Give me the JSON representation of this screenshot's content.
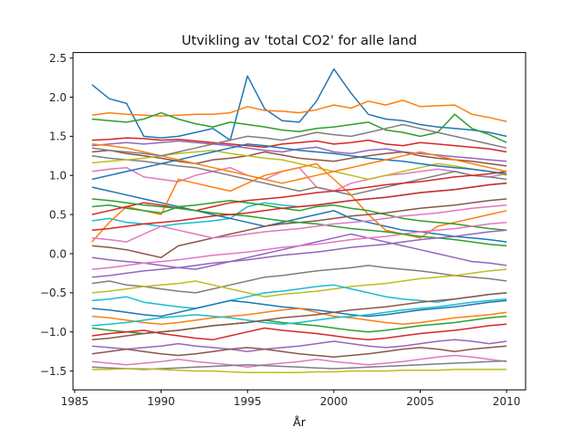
{
  "chart_data": {
    "type": "line",
    "title": "Utvikling av 'total CO2' for alle land",
    "xlabel": "År",
    "ylabel": "",
    "xlim": [
      1984.9,
      2011.1
    ],
    "ylim": [
      -1.74,
      2.57
    ],
    "xticks": [
      1985,
      1990,
      1995,
      2000,
      2005,
      2010
    ],
    "yticks": [
      -1.5,
      -1.0,
      -0.5,
      0.0,
      0.5,
      1.0,
      1.5,
      2.0,
      2.5
    ],
    "ytick_labels": [
      "−1.5",
      "−1.0",
      "−0.5",
      "0.0",
      "0.5",
      "1.0",
      "1.5",
      "2.0",
      "2.5"
    ],
    "x": [
      1986,
      1987,
      1988,
      1989,
      1990,
      1991,
      1992,
      1993,
      1994,
      1995,
      1996,
      1997,
      1998,
      1999,
      2000,
      2001,
      2002,
      2003,
      2004,
      2005,
      2006,
      2007,
      2008,
      2009,
      2010
    ],
    "palette": [
      "#1f77b4",
      "#ff7f0e",
      "#2ca02c",
      "#d62728",
      "#9467bd",
      "#8c564b",
      "#e377c2",
      "#7f7f7f",
      "#bcbd22",
      "#17becf"
    ],
    "series": [
      {
        "values": [
          2.16,
          1.98,
          1.92,
          1.5,
          1.48,
          1.5,
          1.55,
          1.6,
          1.45,
          2.27,
          1.85,
          1.7,
          1.68,
          1.95,
          2.36,
          2.05,
          1.78,
          1.72,
          1.7,
          1.65,
          1.62,
          1.6,
          1.58,
          1.55,
          1.5
        ]
      },
      {
        "values": [
          1.77,
          1.8,
          1.78,
          1.77,
          1.76,
          1.77,
          1.78,
          1.78,
          1.8,
          1.88,
          1.83,
          1.82,
          1.8,
          1.84,
          1.9,
          1.86,
          1.95,
          1.9,
          1.96,
          1.88,
          1.89,
          1.9,
          1.78,
          1.74,
          1.69
        ]
      },
      {
        "values": [
          1.72,
          1.7,
          1.68,
          1.72,
          1.8,
          1.72,
          1.66,
          1.62,
          1.68,
          1.65,
          1.62,
          1.58,
          1.56,
          1.6,
          1.62,
          1.65,
          1.68,
          1.58,
          1.55,
          1.5,
          1.55,
          1.78,
          1.6,
          1.52,
          1.42
        ]
      },
      {
        "values": [
          1.45,
          1.46,
          1.48,
          1.47,
          1.45,
          1.46,
          1.44,
          1.42,
          1.4,
          1.38,
          1.36,
          1.4,
          1.42,
          1.44,
          1.4,
          1.42,
          1.45,
          1.4,
          1.38,
          1.42,
          1.4,
          1.38,
          1.36,
          1.34,
          1.3
        ]
      },
      {
        "values": [
          1.38,
          1.4,
          1.42,
          1.4,
          1.42,
          1.44,
          1.42,
          1.4,
          1.38,
          1.35,
          1.32,
          1.3,
          1.34,
          1.36,
          1.3,
          1.28,
          1.32,
          1.34,
          1.3,
          1.28,
          1.26,
          1.24,
          1.22,
          1.2,
          1.18
        ]
      },
      {
        "values": [
          1.3,
          1.32,
          1.28,
          1.25,
          1.22,
          1.18,
          1.15,
          1.2,
          1.22,
          1.25,
          1.3,
          1.26,
          1.22,
          1.2,
          1.18,
          1.22,
          1.25,
          1.28,
          1.3,
          1.25,
          1.22,
          1.2,
          1.18,
          1.15,
          1.12
        ]
      },
      {
        "values": [
          1.05,
          1.08,
          1.1,
          0.98,
          0.95,
          0.92,
          1.0,
          1.05,
          1.1,
          1.0,
          0.95,
          1.05,
          1.1,
          0.85,
          0.8,
          0.9,
          0.95,
          1.0,
          1.02,
          1.05,
          1.08,
          1.05,
          1.0,
          0.98,
          1.02
        ]
      },
      {
        "values": [
          1.25,
          1.22,
          1.2,
          1.18,
          1.15,
          1.12,
          1.1,
          1.05,
          1.0,
          0.95,
          0.9,
          0.85,
          0.8,
          0.85,
          0.8,
          0.75,
          0.8,
          0.85,
          0.9,
          0.95,
          1.0,
          1.05,
          1.0,
          0.98,
          0.95
        ]
      },
      {
        "values": [
          1.16,
          1.18,
          1.2,
          1.22,
          1.25,
          1.28,
          1.3,
          1.32,
          1.28,
          1.25,
          1.22,
          1.2,
          1.15,
          1.1,
          1.05,
          1.0,
          0.95,
          1.0,
          1.05,
          1.1,
          1.15,
          1.12,
          1.08,
          1.05,
          1.0
        ]
      },
      {
        "values": [
          0.42,
          0.45,
          0.4,
          0.38,
          0.35,
          0.38,
          0.4,
          0.42,
          0.45,
          0.6,
          0.65,
          0.62,
          0.6,
          0.62,
          0.65,
          0.68,
          0.7,
          0.72,
          0.75,
          0.78,
          0.8,
          0.82,
          0.85,
          0.88,
          0.9
        ]
      },
      {
        "values": [
          0.85,
          0.8,
          0.75,
          0.7,
          0.65,
          0.6,
          0.55,
          0.5,
          0.45,
          0.4,
          0.35,
          0.4,
          0.45,
          0.5,
          0.55,
          0.45,
          0.4,
          0.35,
          0.3,
          0.28,
          0.25,
          0.22,
          0.2,
          0.18,
          0.15
        ]
      },
      {
        "values": [
          0.15,
          0.4,
          0.6,
          0.55,
          0.5,
          0.95,
          0.9,
          0.85,
          0.8,
          0.9,
          1.0,
          1.05,
          1.1,
          1.15,
          0.95,
          0.75,
          0.5,
          0.3,
          0.25,
          0.2,
          0.35,
          0.4,
          0.45,
          0.5,
          0.55
        ]
      },
      {
        "values": [
          0.6,
          0.62,
          0.58,
          0.55,
          0.52,
          0.6,
          0.62,
          0.65,
          0.68,
          0.65,
          0.62,
          0.58,
          0.55,
          0.6,
          0.62,
          0.58,
          0.55,
          0.5,
          0.45,
          0.42,
          0.4,
          0.38,
          0.35,
          0.32,
          0.3
        ]
      },
      {
        "values": [
          0.5,
          0.55,
          0.6,
          0.65,
          0.62,
          0.58,
          0.55,
          0.6,
          0.65,
          0.68,
          0.7,
          0.72,
          0.75,
          0.78,
          0.8,
          0.82,
          0.85,
          0.88,
          0.9,
          0.92,
          0.95,
          0.98,
          1.0,
          1.02,
          1.05
        ]
      },
      {
        "values": [
          -0.05,
          -0.08,
          -0.1,
          -0.12,
          -0.15,
          -0.18,
          -0.2,
          -0.15,
          -0.1,
          -0.05,
          0.0,
          0.05,
          0.1,
          0.15,
          0.2,
          0.25,
          0.2,
          0.15,
          0.1,
          0.05,
          0.0,
          -0.05,
          -0.1,
          -0.12,
          -0.15
        ]
      },
      {
        "values": [
          0.1,
          0.08,
          0.05,
          0.0,
          -0.05,
          0.1,
          0.15,
          0.2,
          0.25,
          0.3,
          0.35,
          0.38,
          0.4,
          0.42,
          0.45,
          0.48,
          0.5,
          0.52,
          0.55,
          0.58,
          0.6,
          0.62,
          0.65,
          0.68,
          0.7
        ]
      },
      {
        "values": [
          -0.2,
          -0.18,
          -0.15,
          -0.12,
          -0.1,
          -0.08,
          -0.05,
          -0.02,
          0.0,
          0.02,
          0.05,
          0.08,
          0.1,
          0.12,
          0.15,
          0.18,
          0.2,
          0.22,
          0.25,
          0.28,
          0.3,
          0.32,
          0.35,
          0.38,
          0.4
        ]
      },
      {
        "values": [
          -0.38,
          -0.35,
          -0.4,
          -0.42,
          -0.45,
          -0.48,
          -0.5,
          -0.45,
          -0.4,
          -0.35,
          -0.3,
          -0.28,
          -0.25,
          -0.22,
          -0.2,
          -0.18,
          -0.15,
          -0.18,
          -0.2,
          -0.22,
          -0.25,
          -0.28,
          -0.3,
          -0.32,
          -0.35
        ]
      },
      {
        "values": [
          -0.5,
          -0.48,
          -0.45,
          -0.42,
          -0.4,
          -0.38,
          -0.35,
          -0.4,
          -0.45,
          -0.5,
          -0.55,
          -0.52,
          -0.5,
          -0.48,
          -0.45,
          -0.42,
          -0.4,
          -0.38,
          -0.35,
          -0.32,
          -0.3,
          -0.28,
          -0.25,
          -0.22,
          -0.2
        ]
      },
      {
        "values": [
          -0.6,
          -0.58,
          -0.55,
          -0.62,
          -0.65,
          -0.68,
          -0.7,
          -0.65,
          -0.6,
          -0.55,
          -0.5,
          -0.48,
          -0.45,
          -0.42,
          -0.4,
          -0.45,
          -0.5,
          -0.55,
          -0.58,
          -0.6,
          -0.62,
          -0.58,
          -0.55,
          -0.52,
          -0.5
        ]
      },
      {
        "values": [
          -0.7,
          -0.72,
          -0.75,
          -0.78,
          -0.8,
          -0.75,
          -0.7,
          -0.65,
          -0.6,
          -0.62,
          -0.65,
          -0.68,
          -0.7,
          -0.72,
          -0.75,
          -0.78,
          -0.8,
          -0.78,
          -0.75,
          -0.72,
          -0.7,
          -0.68,
          -0.65,
          -0.62,
          -0.6
        ]
      },
      {
        "values": [
          -0.8,
          -0.82,
          -0.85,
          -0.88,
          -0.9,
          -0.88,
          -0.85,
          -0.82,
          -0.8,
          -0.78,
          -0.75,
          -0.72,
          -0.7,
          -0.75,
          -0.8,
          -0.82,
          -0.85,
          -0.88,
          -0.9,
          -0.88,
          -0.85,
          -0.82,
          -0.8,
          -0.78,
          -0.75
        ]
      },
      {
        "values": [
          -0.95,
          -0.98,
          -1.0,
          -1.02,
          -1.0,
          -0.98,
          -0.95,
          -0.92,
          -0.9,
          -0.88,
          -0.85,
          -0.88,
          -0.9,
          -0.92,
          -0.95,
          -0.98,
          -1.0,
          -0.98,
          -0.95,
          -0.92,
          -0.9,
          -0.88,
          -0.85,
          -0.82,
          -0.8
        ]
      },
      {
        "values": [
          -1.05,
          -1.02,
          -1.0,
          -0.98,
          -1.02,
          -1.05,
          -1.08,
          -1.1,
          -1.05,
          -1.0,
          -0.95,
          -0.98,
          -1.0,
          -1.02,
          -1.05,
          -1.08,
          -1.1,
          -1.08,
          -1.05,
          -1.02,
          -1.0,
          -0.98,
          -0.95,
          -0.92,
          -0.9
        ]
      },
      {
        "values": [
          -1.18,
          -1.2,
          -1.22,
          -1.2,
          -1.18,
          -1.15,
          -1.18,
          -1.2,
          -1.22,
          -1.25,
          -1.22,
          -1.2,
          -1.18,
          -1.15,
          -1.12,
          -1.15,
          -1.18,
          -1.2,
          -1.18,
          -1.15,
          -1.12,
          -1.1,
          -1.12,
          -1.15,
          -1.12
        ]
      },
      {
        "values": [
          -1.28,
          -1.25,
          -1.22,
          -1.25,
          -1.28,
          -1.3,
          -1.28,
          -1.25,
          -1.22,
          -1.2,
          -1.22,
          -1.25,
          -1.28,
          -1.3,
          -1.32,
          -1.3,
          -1.28,
          -1.25,
          -1.22,
          -1.2,
          -1.22,
          -1.25,
          -1.22,
          -1.2,
          -1.18
        ]
      },
      {
        "values": [
          -1.38,
          -1.4,
          -1.42,
          -1.4,
          -1.38,
          -1.35,
          -1.38,
          -1.4,
          -1.42,
          -1.45,
          -1.42,
          -1.4,
          -1.38,
          -1.35,
          -1.38,
          -1.4,
          -1.42,
          -1.4,
          -1.38,
          -1.35,
          -1.32,
          -1.3,
          -1.32,
          -1.35,
          -1.38
        ]
      },
      {
        "values": [
          -1.45,
          -1.46,
          -1.47,
          -1.48,
          -1.47,
          -1.46,
          -1.45,
          -1.44,
          -1.43,
          -1.42,
          -1.43,
          -1.44,
          -1.45,
          -1.46,
          -1.47,
          -1.46,
          -1.45,
          -1.44,
          -1.43,
          -1.42,
          -1.41,
          -1.4,
          -1.39,
          -1.38,
          -1.37
        ]
      },
      {
        "values": [
          -1.48,
          -1.48,
          -1.47,
          -1.47,
          -1.48,
          -1.49,
          -1.5,
          -1.5,
          -1.51,
          -1.52,
          -1.52,
          -1.52,
          -1.52,
          -1.51,
          -1.51,
          -1.5,
          -1.5,
          -1.5,
          -1.49,
          -1.49,
          -1.49,
          -1.48,
          -1.48,
          -1.48,
          -1.48
        ]
      },
      {
        "values": [
          -0.92,
          -0.9,
          -0.88,
          -0.85,
          -0.82,
          -0.8,
          -0.78,
          -0.8,
          -0.82,
          -0.85,
          -0.88,
          -0.9,
          -0.88,
          -0.85,
          -0.82,
          -0.8,
          -0.78,
          -0.75,
          -0.72,
          -0.7,
          -0.68,
          -0.65,
          -0.62,
          -0.6,
          -0.58
        ]
      },
      {
        "values": [
          0.95,
          1.0,
          1.05,
          1.1,
          1.15,
          1.2,
          1.25,
          1.3,
          1.35,
          1.4,
          1.38,
          1.35,
          1.32,
          1.3,
          1.28,
          1.25,
          1.22,
          1.2,
          1.18,
          1.15,
          1.12,
          1.1,
          1.08,
          1.05,
          1.02
        ]
      },
      {
        "values": [
          1.4,
          1.38,
          1.35,
          1.3,
          1.25,
          1.2,
          1.15,
          1.1,
          1.05,
          1.0,
          0.95,
          0.9,
          0.95,
          1.0,
          1.05,
          1.1,
          1.15,
          1.2,
          1.25,
          1.3,
          1.25,
          1.2,
          1.15,
          1.1,
          1.05
        ]
      },
      {
        "values": [
          0.7,
          0.68,
          0.65,
          0.62,
          0.6,
          0.58,
          0.55,
          0.52,
          0.5,
          0.48,
          0.45,
          0.42,
          0.4,
          0.38,
          0.35,
          0.32,
          0.3,
          0.28,
          0.25,
          0.22,
          0.2,
          0.18,
          0.15,
          0.12,
          0.1
        ]
      },
      {
        "values": [
          0.3,
          0.32,
          0.35,
          0.38,
          0.4,
          0.42,
          0.45,
          0.48,
          0.5,
          0.52,
          0.55,
          0.58,
          0.6,
          0.62,
          0.65,
          0.68,
          0.7,
          0.72,
          0.75,
          0.78,
          0.8,
          0.82,
          0.85,
          0.88,
          0.9
        ]
      },
      {
        "values": [
          -0.3,
          -0.28,
          -0.25,
          -0.22,
          -0.2,
          -0.18,
          -0.15,
          -0.12,
          -0.1,
          -0.08,
          -0.05,
          -0.02,
          0.0,
          0.02,
          0.05,
          0.08,
          0.1,
          0.12,
          0.15,
          0.18,
          0.2,
          0.22,
          0.25,
          0.28,
          0.3
        ]
      },
      {
        "values": [
          -1.1,
          -1.08,
          -1.05,
          -1.02,
          -1.0,
          -0.98,
          -0.95,
          -0.92,
          -0.9,
          -0.88,
          -0.85,
          -0.82,
          -0.8,
          -0.78,
          -0.75,
          -0.72,
          -0.7,
          -0.68,
          -0.65,
          -0.62,
          -0.6,
          -0.58,
          -0.55,
          -0.52,
          -0.5
        ]
      },
      {
        "values": [
          0.2,
          0.18,
          0.15,
          0.25,
          0.35,
          0.3,
          0.25,
          0.2,
          0.22,
          0.25,
          0.28,
          0.3,
          0.32,
          0.35,
          0.38,
          0.4,
          0.42,
          0.45,
          0.48,
          0.5,
          0.52,
          0.55,
          0.58,
          0.6,
          0.62
        ]
      },
      {
        "values": [
          1.35,
          1.32,
          1.3,
          1.28,
          1.25,
          1.3,
          1.35,
          1.4,
          1.45,
          1.5,
          1.48,
          1.45,
          1.5,
          1.55,
          1.52,
          1.5,
          1.55,
          1.6,
          1.65,
          1.6,
          1.55,
          1.5,
          1.45,
          1.4,
          1.35
        ]
      }
    ]
  }
}
